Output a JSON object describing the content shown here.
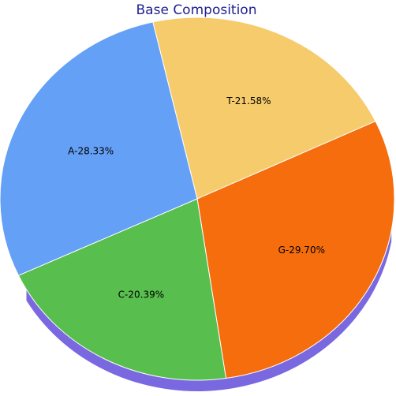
{
  "chart_data": {
    "type": "pie",
    "title": "Base Composition",
    "slices": [
      {
        "name": "A",
        "label": "A-28.33%",
        "value": 28.33,
        "color": "#64a0f5"
      },
      {
        "name": "T",
        "label": "T-21.58%",
        "value": 21.58,
        "color": "#f6cb6b"
      },
      {
        "name": "G",
        "label": "G-29.70%",
        "value": 29.7,
        "color": "#f56d0d"
      },
      {
        "name": "C",
        "label": "C-20.39%",
        "value": 20.39,
        "color": "#58be4e"
      }
    ],
    "colors": {
      "title": "#1f1f8f",
      "slice_edge": "#ffffff",
      "depth_side": "#7a68e0"
    },
    "legend": "none",
    "style": "3d-tilted"
  }
}
